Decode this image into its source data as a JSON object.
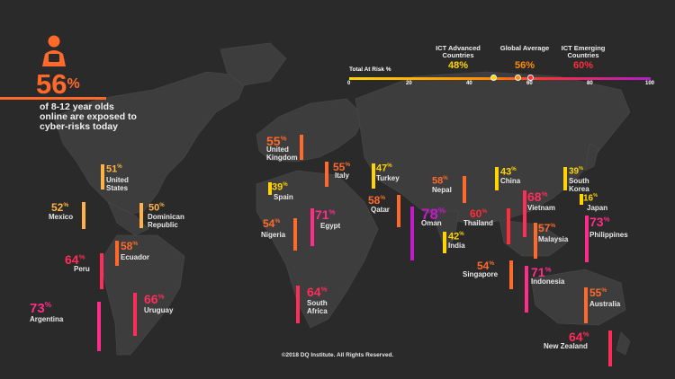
{
  "headline": {
    "value": "56",
    "unit": "%",
    "text": "of 8-12 year olds online are exposed to cyber-risks today"
  },
  "scale": {
    "title": "Total At Risk %",
    "ticks": [
      "0",
      "20",
      "40",
      "60",
      "80",
      "100"
    ],
    "markers": [
      {
        "label": "ICT Advanced Countries",
        "value": "48%",
        "color": "#ffd400"
      },
      {
        "label": "Global Average",
        "value": "56%",
        "color": "#ff8c00"
      },
      {
        "label": "ICT Emerging Countries",
        "value": "60%",
        "color": "#ff2d3a"
      }
    ]
  },
  "countries": [
    {
      "name": "United Kingdom",
      "value": "55",
      "color": "#ff6a2b"
    },
    {
      "name": "United States",
      "value": "51",
      "color": "#ffb347"
    },
    {
      "name": "Mexico",
      "value": "52",
      "color": "#ffb347"
    },
    {
      "name": "Dominican Republic",
      "value": "50",
      "color": "#ffb347"
    },
    {
      "name": "Spain",
      "value": "39",
      "color": "#ffd400"
    },
    {
      "name": "Italy",
      "value": "55",
      "color": "#ff6a2b"
    },
    {
      "name": "Turkey",
      "value": "47",
      "color": "#ffd400"
    },
    {
      "name": "Nepal",
      "value": "58",
      "color": "#ff6a2b"
    },
    {
      "name": "China",
      "value": "43",
      "color": "#ffd400"
    },
    {
      "name": "South Korea",
      "value": "39",
      "color": "#ffd400"
    },
    {
      "name": "Japan",
      "value": "16",
      "color": "#ffd400"
    },
    {
      "name": "Qatar",
      "value": "58",
      "color": "#ff6a2b"
    },
    {
      "name": "Oman",
      "value": "78",
      "color": "#c219c9"
    },
    {
      "name": "Nigeria",
      "value": "54",
      "color": "#ff6a2b"
    },
    {
      "name": "Egypt",
      "value": "71",
      "color": "#ff2d8a"
    },
    {
      "name": "Thailand",
      "value": "60",
      "color": "#ff2d3a"
    },
    {
      "name": "Vietnam",
      "value": "68",
      "color": "#ff2d5a"
    },
    {
      "name": "India",
      "value": "42",
      "color": "#ffd400"
    },
    {
      "name": "Malaysia",
      "value": "57",
      "color": "#ff6a2b"
    },
    {
      "name": "Philippines",
      "value": "73",
      "color": "#ff2d8a"
    },
    {
      "name": "Ecuador",
      "value": "58",
      "color": "#ff6a2b"
    },
    {
      "name": "Peru",
      "value": "64",
      "color": "#ff2d5a"
    },
    {
      "name": "Argentina",
      "value": "73",
      "color": "#ff2d8a"
    },
    {
      "name": "Uruguay",
      "value": "66",
      "color": "#ff2d5a"
    },
    {
      "name": "South Africa",
      "value": "64",
      "color": "#ff2d5a"
    },
    {
      "name": "Singapore",
      "value": "54",
      "color": "#ff6a2b"
    },
    {
      "name": "Indonesia",
      "value": "71",
      "color": "#ff2d8a"
    },
    {
      "name": "Australia",
      "value": "55",
      "color": "#ff6a2b"
    },
    {
      "name": "New Zealand",
      "value": "64",
      "color": "#ff2d5a"
    }
  ],
  "footer": "©2018 DQ Institute. All Rights Reserved."
}
